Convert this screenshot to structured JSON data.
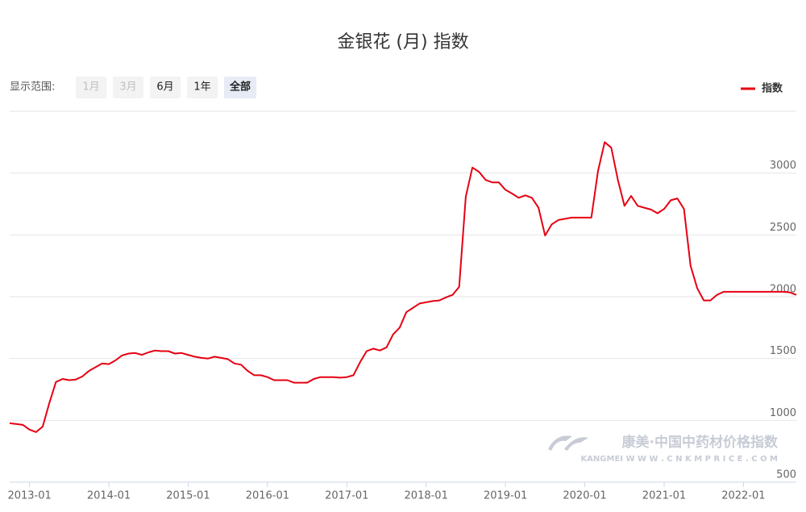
{
  "chart_data": {
    "type": "line",
    "title": "金银花 (月) 指数",
    "x": [
      null,
      null,
      null,
      "2013-01",
      null,
      null,
      null,
      null,
      null,
      null,
      null,
      null,
      null,
      null,
      null,
      "2014-01",
      null,
      null,
      null,
      null,
      null,
      null,
      null,
      null,
      null,
      null,
      null,
      "2015-01",
      null,
      null,
      null,
      null,
      null,
      null,
      null,
      null,
      null,
      null,
      null,
      "2016-01",
      null,
      null,
      null,
      null,
      null,
      null,
      null,
      null,
      null,
      null,
      null,
      "2017-01",
      null,
      null,
      null,
      null,
      null,
      null,
      null,
      null,
      null,
      null,
      null,
      "2018-01",
      null,
      null,
      null,
      null,
      null,
      null,
      null,
      null,
      null,
      null,
      null,
      "2019-01",
      null,
      null,
      null,
      null,
      null,
      null,
      null,
      null,
      null,
      null,
      null,
      "2020-01",
      null,
      null,
      null,
      null,
      null,
      null,
      null,
      null,
      null,
      null,
      null,
      "2021-01",
      null,
      null,
      null,
      null,
      null,
      null,
      null,
      null,
      null,
      null,
      null,
      "2022-01",
      null,
      null,
      null,
      null,
      null,
      null,
      null,
      null
    ],
    "series": [
      {
        "name": "指数",
        "color": "#e60012",
        "values": [
          977,
          970,
          964,
          925,
          905,
          950,
          1140,
          1310,
          1335,
          1325,
          1330,
          1355,
          1400,
          1430,
          1460,
          1455,
          1485,
          1525,
          1540,
          1545,
          1530,
          1550,
          1565,
          1560,
          1560,
          1540,
          1545,
          1530,
          1515,
          1505,
          1500,
          1515,
          1505,
          1495,
          1460,
          1450,
          1400,
          1365,
          1365,
          1350,
          1325,
          1325,
          1325,
          1305,
          1305,
          1305,
          1335,
          1350,
          1350,
          1350,
          1345,
          1350,
          1365,
          1470,
          1560,
          1580,
          1565,
          1590,
          1695,
          1750,
          1875,
          1910,
          1945,
          1955,
          1965,
          1970,
          1995,
          2015,
          2080,
          2810,
          3045,
          3010,
          2945,
          2925,
          2925,
          2865,
          2835,
          2800,
          2820,
          2800,
          2720,
          2495,
          2585,
          2620,
          2630,
          2640,
          2640,
          2640,
          2640,
          3015,
          3250,
          3205,
          2945,
          2735,
          2815,
          2735,
          2720,
          2705,
          2675,
          2710,
          2780,
          2795,
          2710,
          2250,
          2070,
          1970,
          1970,
          2015,
          2040,
          2040,
          2040,
          2040,
          2040,
          2040,
          2040,
          2040,
          2040,
          2040,
          2035,
          2015
        ]
      }
    ],
    "ylim": [
      500,
      3500
    ],
    "yticks": [
      500,
      1000,
      1500,
      2000,
      2500,
      3000
    ],
    "grid": true,
    "legend": "top-right"
  },
  "controls": {
    "range_label": "显示范围:",
    "range_buttons": [
      "1月",
      "3月",
      "6月",
      "1年",
      "全部"
    ]
  },
  "watermark": {
    "brand": "康美·中国中药材价格指数",
    "url": "KANGMEI  W W W . C N K M P R I C E . C O M"
  }
}
